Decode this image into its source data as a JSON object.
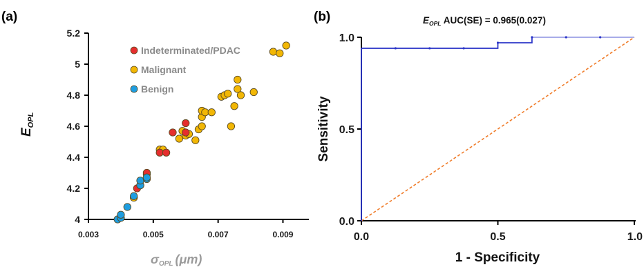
{
  "chart_data": [
    {
      "panel": "(a)",
      "type": "scatter",
      "xlabel_symbol": "σ",
      "xlabel_sub": "OPL",
      "xlabel_unit": "(μm)",
      "ylabel_symbol": "E",
      "ylabel_sub": "OPL",
      "xlim": [
        0.003,
        0.0098
      ],
      "ylim": [
        4.0,
        5.2
      ],
      "x_ticks": [
        "0.003",
        "0.005",
        "0.007",
        "0.009"
      ],
      "x_tick_values": [
        0.003,
        0.005,
        0.007,
        0.009
      ],
      "y_ticks": [
        "4",
        "4.2",
        "4.4",
        "4.6",
        "4.8",
        "5",
        "5.2"
      ],
      "y_tick_values": [
        4.0,
        4.2,
        4.4,
        4.6,
        4.8,
        5.0,
        5.2
      ],
      "legend_position": "top-left",
      "series": [
        {
          "name": "Malignant",
          "color": "#f2b705",
          "points": [
            [
              0.0052,
              4.45
            ],
            [
              0.0053,
              4.45
            ],
            [
              0.0058,
              4.52
            ],
            [
              0.006,
              4.54
            ],
            [
              0.0059,
              4.57
            ],
            [
              0.0061,
              4.55
            ],
            [
              0.0063,
              4.51
            ],
            [
              0.0064,
              4.58
            ],
            [
              0.0065,
              4.6
            ],
            [
              0.0065,
              4.66
            ],
            [
              0.0065,
              4.7
            ],
            [
              0.0066,
              4.69
            ],
            [
              0.0068,
              4.69
            ],
            [
              0.0071,
              4.79
            ],
            [
              0.0072,
              4.8
            ],
            [
              0.0073,
              4.81
            ],
            [
              0.0075,
              4.73
            ],
            [
              0.0074,
              4.6
            ],
            [
              0.0076,
              4.84
            ],
            [
              0.0077,
              4.8
            ],
            [
              0.0076,
              4.9
            ],
            [
              0.0081,
              4.82
            ],
            [
              0.0087,
              5.08
            ],
            [
              0.0089,
              5.07
            ],
            [
              0.0091,
              5.12
            ],
            [
              0.0044,
              4.14
            ]
          ]
        },
        {
          "name": "Indeterminated/PDAC",
          "color": "#e52e2e",
          "points": [
            [
              0.0045,
              4.2
            ],
            [
              0.0046,
              4.22
            ],
            [
              0.0048,
              4.29
            ],
            [
              0.0048,
              4.3
            ],
            [
              0.0052,
              4.43
            ],
            [
              0.0054,
              4.43
            ],
            [
              0.0056,
              4.56
            ],
            [
              0.006,
              4.56
            ],
            [
              0.006,
              4.62
            ]
          ]
        },
        {
          "name": "Benign",
          "color": "#1e9de0",
          "points": [
            [
              0.0039,
              4.0
            ],
            [
              0.004,
              4.01
            ],
            [
              0.004,
              4.03
            ],
            [
              0.0042,
              4.08
            ],
            [
              0.0044,
              4.15
            ],
            [
              0.0046,
              4.22
            ],
            [
              0.0046,
              4.25
            ],
            [
              0.0048,
              4.26
            ],
            [
              0.0048,
              4.27
            ]
          ]
        }
      ]
    },
    {
      "panel": "(b)",
      "type": "line",
      "title_symbol": "E",
      "title_sub": "OPL",
      "title_rest": " AUC(SE) = 0.965(0.027)",
      "xlabel": "1 - Specificity",
      "ylabel": "Sensitivity",
      "xlim": [
        0,
        1
      ],
      "ylim": [
        0,
        1
      ],
      "x_ticks": [
        "0.0",
        "0.5",
        "1.0"
      ],
      "x_tick_values": [
        0,
        0.5,
        1.0
      ],
      "y_ticks": [
        "0.0",
        "0.5",
        "1.0"
      ],
      "y_tick_values": [
        0,
        0.5,
        1.0
      ],
      "series": [
        {
          "role": "roc",
          "color": "#2b35c8",
          "points": [
            [
              0,
              0
            ],
            [
              0,
              0.94
            ],
            [
              0.125,
              0.94
            ],
            [
              0.25,
              0.94
            ],
            [
              0.375,
              0.94
            ],
            [
              0.5,
              0.94
            ],
            [
              0.5,
              0.97
            ],
            [
              0.625,
              0.97
            ],
            [
              0.625,
              1.0
            ],
            [
              0.75,
              1.0
            ],
            [
              0.875,
              1.0
            ],
            [
              1.0,
              1.0
            ]
          ]
        },
        {
          "role": "reference",
          "color": "#f07c2a",
          "points": [
            [
              0,
              0
            ],
            [
              1,
              1
            ]
          ]
        }
      ]
    }
  ]
}
